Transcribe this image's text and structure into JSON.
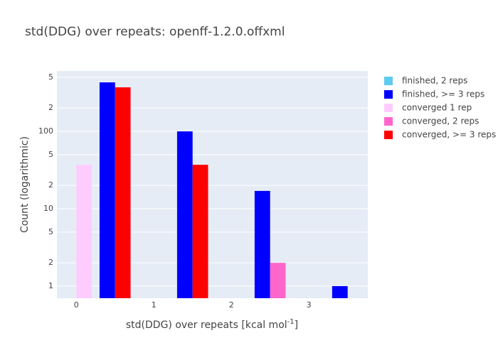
{
  "chart_data": {
    "type": "bar",
    "title": "std(DDG) over repeats: openff-1.2.0.offxml",
    "x_label": [
      "std(DDG) over repeats [kcal mol",
      "-1",
      "]"
    ],
    "y_label": "Count (logarithmic)",
    "log_y": true,
    "grid": "y",
    "bar_width": 0.2,
    "xlim": [
      -0.25,
      3.76
    ],
    "xticks": [
      0,
      1,
      2,
      3
    ],
    "ylim": [
      0.698,
      603
    ],
    "yticks": [
      1,
      {
        "value": 2,
        "label": "2"
      },
      {
        "value": 5,
        "label": "5"
      },
      10,
      {
        "value": 20,
        "label": "2"
      },
      {
        "value": 50,
        "label": "5"
      },
      100,
      {
        "value": 200,
        "label": "2"
      },
      {
        "value": 500,
        "label": "5"
      }
    ],
    "legend": "right",
    "series": [
      {
        "name": "finished, 2 reps",
        "color": "#5ecbf0",
        "x": [],
        "values": []
      },
      {
        "name": "finished, >= 3 reps",
        "color": "#0000ff",
        "x": [
          0.4,
          1.4,
          2.4,
          3.4
        ],
        "values": [
          430,
          100,
          17,
          1
        ]
      },
      {
        "name": "converged 1 rep",
        "color": "#ffccff",
        "x": [
          0.1
        ],
        "values": [
          37
        ]
      },
      {
        "name": "converged, 2 reps",
        "color": "#ff66cc",
        "x": [
          2.6
        ],
        "values": [
          2
        ]
      },
      {
        "name": "converged, >= 3 reps",
        "color": "#ff0000",
        "x": [
          0.6,
          1.6
        ],
        "values": [
          371,
          37
        ]
      }
    ]
  }
}
